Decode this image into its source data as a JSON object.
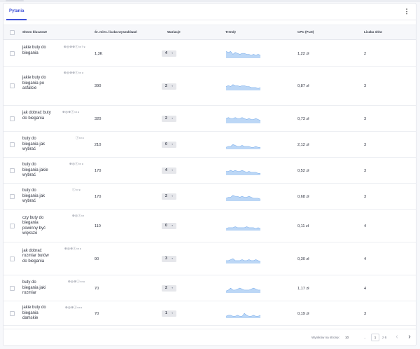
{
  "tabs": [
    {
      "label": "Pytania"
    }
  ],
  "toolbar": {
    "more_icon": "⋮"
  },
  "table": {
    "columns": {
      "keyword": "Słowo kluczowe",
      "volume": "Śr. mies. liczba wyszukiwań",
      "variations": "Wariacje",
      "trends": "Trendy",
      "cpc": "CPC (PLN)",
      "words": "Liczba słów"
    },
    "rows": [
      {
        "keyword": "jakie buty do biegania",
        "icons": "⊕◎⊕⊕ⓘ▭▿◒",
        "volume": "1,3K",
        "variations": "4",
        "cpc": "1,22 zł",
        "words": "2",
        "trend": [
          7,
          6,
          7,
          4,
          6,
          5,
          4,
          5,
          5,
          4,
          4,
          3,
          4,
          3,
          4,
          3
        ]
      },
      {
        "keyword": "jakie buty do biegania po asfalcie",
        "icons": "⊕◎⊕⊕ⓘ▭◒",
        "volume": "390",
        "variations": "2",
        "cpc": "0,87 zł",
        "words": "3",
        "trend": [
          4,
          5,
          4,
          6,
          5,
          5,
          4,
          5,
          5,
          4,
          4,
          3,
          3,
          3,
          2,
          3
        ]
      },
      {
        "keyword": "jak dobrać buty do biegania",
        "icons": "⊕◎⊕ⓘ▭◒",
        "volume": "320",
        "variations": "2",
        "cpc": "0,73 zł",
        "words": "3",
        "trend": [
          5,
          6,
          5,
          5,
          6,
          5,
          5,
          6,
          5,
          4,
          5,
          4,
          4,
          5,
          4,
          3
        ]
      },
      {
        "keyword": "buty do biegania jak wybrać",
        "icons": "ⓘ▭◒",
        "volume": "210",
        "variations": "0",
        "cpc": "2,12 zł",
        "words": "3",
        "trend": [
          2,
          3,
          3,
          5,
          4,
          3,
          3,
          4,
          3,
          3,
          3,
          2,
          2,
          3,
          2,
          2
        ]
      },
      {
        "keyword": "buty do biegania jakie wybrać",
        "icons": "⊕◎ⓘ▭◒",
        "volume": "170",
        "variations": "4",
        "cpc": "0,52 zł",
        "words": "3",
        "trend": [
          4,
          4,
          5,
          4,
          5,
          4,
          4,
          5,
          4,
          3,
          4,
          3,
          3,
          3,
          2,
          2
        ]
      },
      {
        "keyword": "buty do biegania jak wybrać",
        "icons": "ⓘ▭◒",
        "volume": "170",
        "variations": "2",
        "cpc": "0,68 zł",
        "words": "3",
        "trend": [
          3,
          4,
          4,
          6,
          5,
          5,
          4,
          5,
          4,
          4,
          5,
          4,
          3,
          3,
          3,
          2
        ]
      },
      {
        "keyword": "czy buty do biegania powinny być większe",
        "icons": "⊕◎ⓘ▭",
        "volume": "110",
        "variations": "0",
        "cpc": "0,11 zł",
        "words": "4",
        "trend": [
          2,
          3,
          3,
          3,
          4,
          3,
          3,
          3,
          3,
          4,
          3,
          3,
          3,
          2,
          3,
          2
        ]
      },
      {
        "keyword": "jak dobrać rozmiar butów do biegania",
        "icons": "⊕◎⊕ⓘ▭◒",
        "volume": "90",
        "variations": "3",
        "cpc": "0,30 zł",
        "words": "4",
        "trend": [
          3,
          3,
          4,
          5,
          3,
          3,
          3,
          4,
          3,
          3,
          4,
          3,
          3,
          4,
          3,
          2
        ]
      },
      {
        "keyword": "buty do biegania jaki rozmiar",
        "icons": "⊕◎⊕ⓘ▭◒",
        "volume": "70",
        "variations": "2",
        "cpc": "1,17 zł",
        "words": "4",
        "trend": [
          2,
          3,
          5,
          3,
          3,
          4,
          5,
          4,
          3,
          3,
          3,
          4,
          5,
          4,
          3,
          3
        ]
      },
      {
        "keyword": "jakie buty do biegania damskie",
        "icons": "⊕◎⊕ⓘ▭◒",
        "volume": "70",
        "variations": "1",
        "cpc": "0,19 zł",
        "words": "3",
        "trend": [
          2,
          3,
          3,
          2,
          2,
          3,
          2,
          2,
          5,
          3,
          2,
          2,
          3,
          2,
          2,
          3
        ]
      }
    ]
  },
  "pagination": {
    "label": "Wyników na stronę:",
    "page_size": "10",
    "page": "1",
    "of": "z 6",
    "prev_icon": "‹",
    "next_icon": "›"
  },
  "colors": {
    "accent": "#3f51d8",
    "trend_fill": "#bcd7f6",
    "trend_stroke": "#7fb0ec"
  }
}
